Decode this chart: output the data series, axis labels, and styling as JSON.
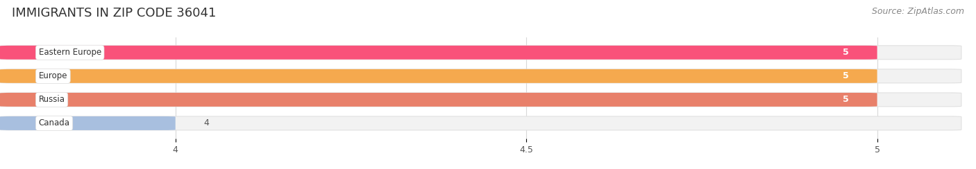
{
  "title": "IMMIGRANTS IN ZIP CODE 36041",
  "source": "Source: ZipAtlas.com",
  "categories": [
    "Eastern Europe",
    "Europe",
    "Russia",
    "Canada"
  ],
  "values": [
    5,
    5,
    5,
    4
  ],
  "bar_colors": [
    "#f9527a",
    "#f5a94e",
    "#e8806a",
    "#a8bfdf"
  ],
  "bar_bg_color": "#f2f2f2",
  "bar_border_color": "#e0e0e0",
  "xlim_min": 3.75,
  "xlim_max": 5.12,
  "xticks": [
    4,
    4.5,
    5
  ],
  "title_fontsize": 13,
  "source_fontsize": 9,
  "label_fontsize": 8.5,
  "value_fontsize": 9,
  "bar_height": 0.55,
  "background_color": "#ffffff",
  "grid_color": "#d8d8d8",
  "title_color": "#333333",
  "source_color": "#888888"
}
